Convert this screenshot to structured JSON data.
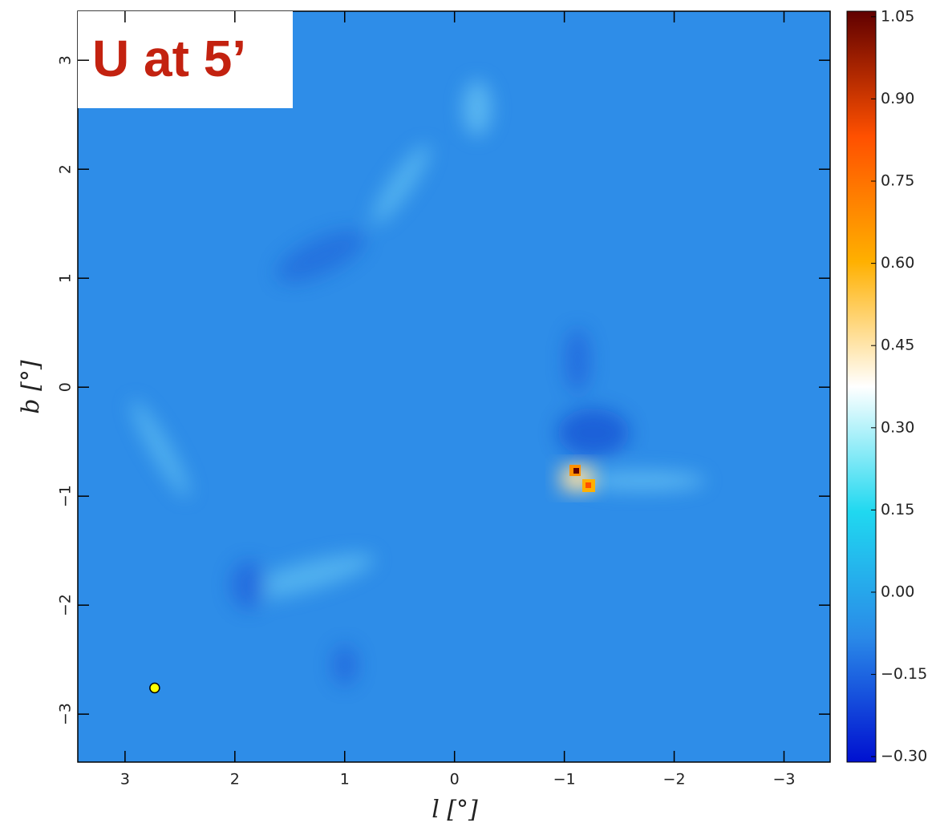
{
  "chart_data": {
    "type": "heatmap",
    "annotation": "U at 5’",
    "xlabel": "l [°]",
    "ylabel": "b [°]",
    "xlim": [
      3.43,
      -3.42
    ],
    "ylim": [
      -3.44,
      3.45
    ],
    "xticks": [
      3,
      2,
      1,
      0,
      {
        "value": -1,
        "label": "−1"
      },
      {
        "value": -2,
        "label": "−2"
      },
      {
        "value": -3,
        "label": "−3"
      }
    ],
    "yticks": [
      {
        "value": -3,
        "label": "−3"
      },
      {
        "value": -2,
        "label": "−2"
      },
      {
        "value": -1,
        "label": "−1"
      },
      0,
      1,
      2,
      3
    ],
    "clim": [
      -0.31,
      1.06
    ],
    "cticks": [
      {
        "value": -0.3,
        "label": "−0.30"
      },
      {
        "value": -0.15,
        "label": "−0.15"
      },
      {
        "value": 0,
        "label": "0.00"
      },
      {
        "value": 0.15,
        "label": "0.15"
      },
      {
        "value": 0.3,
        "label": "0.30"
      },
      {
        "value": 0.45,
        "label": "0.45"
      },
      {
        "value": 0.6,
        "label": "0.60"
      },
      {
        "value": 0.75,
        "label": "0.75"
      },
      {
        "value": 0.9,
        "label": "0.90"
      },
      {
        "value": 1.05,
        "label": "1.05"
      }
    ],
    "colormap": [
      "#0010d0",
      "#2a8ae8",
      "#20d8f0",
      "#ffffff",
      "#ffb000",
      "#ff5000",
      "#600000"
    ],
    "points": {
      "x": [
        2.73
      ],
      "y": [
        -2.76
      ],
      "color": "#ffff00"
    }
  }
}
